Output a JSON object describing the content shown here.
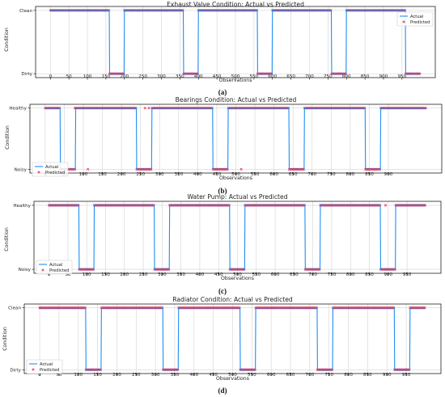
{
  "colors": {
    "actual": "#1f8ef1",
    "predicted": "#d6335c",
    "grid": "#d3d3d3",
    "frame": "#000000"
  },
  "chart_data": [
    {
      "type": "line",
      "title": "Exhaust Valve Condition: Actual vs Predicted",
      "caption": "(a)",
      "xlabel": "Observations",
      "ylabel": "Condition",
      "categories": [
        "Dirty",
        "Clean"
      ],
      "top_label": "Clean",
      "bottom_label": "Dirty",
      "xlim": [
        -40,
        1040
      ],
      "xticks": [
        0,
        50,
        100,
        150,
        200,
        250,
        300,
        350,
        400,
        450,
        500,
        550,
        600,
        650,
        700,
        750,
        800,
        850,
        900,
        950
      ],
      "grid": true,
      "legend_position": "top-right",
      "low_intervals": [
        [
          160,
          200
        ],
        [
          360,
          400
        ],
        [
          560,
          600
        ],
        [
          760,
          800
        ],
        [
          960,
          1000
        ]
      ],
      "predicted_outliers": [],
      "series": [
        {
          "name": "Actual",
          "kind": "line"
        },
        {
          "name": "Predicted",
          "kind": "markers"
        }
      ]
    },
    {
      "type": "line",
      "title": "Bearings Condition: Actual vs Predicted",
      "caption": "(b)",
      "xlabel": "Observations",
      "ylabel": "Condition",
      "categories": [
        "Noisy",
        "Healthy"
      ],
      "top_label": "Healthy",
      "bottom_label": "Noisy",
      "xlim": [
        -40,
        1040
      ],
      "xticks": [
        0,
        50,
        100,
        150,
        200,
        250,
        300,
        350,
        400,
        450,
        500,
        550,
        600,
        650,
        700,
        750,
        800,
        850,
        900
      ],
      "grid": true,
      "legend_position": "bottom-left",
      "low_intervals": [
        [
          40,
          80
        ],
        [
          240,
          280
        ],
        [
          440,
          480
        ],
        [
          640,
          680
        ],
        [
          840,
          880
        ]
      ],
      "predicted_outliers": [
        [
          78,
          "Healthy"
        ],
        [
          112,
          "Noisy"
        ],
        [
          262,
          "Healthy"
        ],
        [
          272,
          "Healthy"
        ],
        [
          514,
          "Noisy"
        ]
      ],
      "series": [
        {
          "name": "Actual",
          "kind": "line"
        },
        {
          "name": "Predicted",
          "kind": "markers"
        }
      ]
    },
    {
      "type": "line",
      "title": "Water Pump: Actual vs Predicted",
      "caption": "(c)",
      "xlabel": "Observations",
      "ylabel": "Condition",
      "categories": [
        "Noisy",
        "Healthy"
      ],
      "top_label": "Healthy",
      "bottom_label": "Noisy",
      "xlim": [
        -40,
        1040
      ],
      "xticks": [
        0,
        50,
        100,
        150,
        200,
        250,
        300,
        350,
        400,
        450,
        500,
        550,
        600,
        650,
        700,
        750,
        800,
        850,
        900,
        950
      ],
      "grid": true,
      "legend_position": "bottom-left",
      "low_intervals": [
        [
          80,
          120
        ],
        [
          280,
          320
        ],
        [
          480,
          520
        ],
        [
          680,
          720
        ],
        [
          880,
          920
        ]
      ],
      "predicted_outliers": [
        [
          893,
          "Healthy"
        ]
      ],
      "series": [
        {
          "name": "Actual",
          "kind": "line"
        },
        {
          "name": "Predicted",
          "kind": "markers"
        }
      ]
    },
    {
      "type": "line",
      "title": "Radiator Condition: Actual vs Predicted",
      "caption": "(d)",
      "xlabel": "Observations",
      "ylabel": "Condition",
      "categories": [
        "Dirty",
        "Clean"
      ],
      "top_label": "Clean",
      "bottom_label": "Dirty",
      "xlim": [
        -40,
        1040
      ],
      "xticks": [
        0,
        50,
        100,
        150,
        200,
        250,
        300,
        350,
        400,
        450,
        500,
        550,
        600,
        650,
        700,
        750,
        800,
        850,
        900,
        950
      ],
      "grid": true,
      "legend_position": "bottom-left",
      "low_intervals": [
        [
          120,
          160
        ],
        [
          320,
          360
        ],
        [
          520,
          560
        ],
        [
          720,
          760
        ],
        [
          920,
          960
        ]
      ],
      "predicted_outliers": [],
      "series": [
        {
          "name": "Actual",
          "kind": "line"
        },
        {
          "name": "Predicted",
          "kind": "markers"
        }
      ]
    }
  ]
}
